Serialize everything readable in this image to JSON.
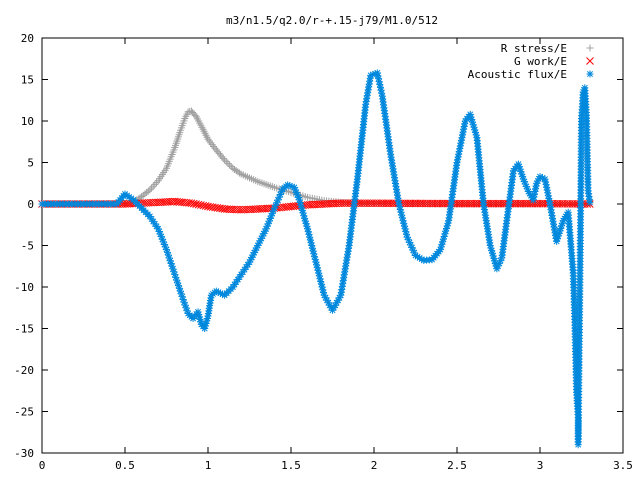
{
  "chart_data": {
    "type": "scatter",
    "title": "m3/n1.5/q2.0/r-+.15-j79/M1.0/512",
    "xlabel": "",
    "ylabel": "",
    "xlim": [
      0,
      3.5
    ],
    "ylim": [
      -30,
      20
    ],
    "x_ticks": [
      "0",
      "0.5",
      "1",
      "1.5",
      "2",
      "2.5",
      "3",
      "3.5"
    ],
    "y_ticks": [
      "20",
      "15",
      "10",
      "5",
      "0",
      "-5",
      "-10",
      "-15",
      "-20",
      "-25",
      "-30"
    ],
    "grid": false,
    "legend_position": "top-right",
    "series": [
      {
        "name": "R stress/E",
        "marker": "+",
        "color": "#a0a0a0",
        "points": [
          [
            0.0,
            0.0
          ],
          [
            0.3,
            0.0
          ],
          [
            0.5,
            0.05
          ],
          [
            0.55,
            0.2
          ],
          [
            0.6,
            0.9
          ],
          [
            0.65,
            1.7
          ],
          [
            0.7,
            2.8
          ],
          [
            0.75,
            4.3
          ],
          [
            0.8,
            6.8
          ],
          [
            0.83,
            8.6
          ],
          [
            0.86,
            10.3
          ],
          [
            0.88,
            11.1
          ],
          [
            0.9,
            11.2
          ],
          [
            0.93,
            10.5
          ],
          [
            0.97,
            9.0
          ],
          [
            1.0,
            7.8
          ],
          [
            1.05,
            6.5
          ],
          [
            1.1,
            5.3
          ],
          [
            1.15,
            4.3
          ],
          [
            1.2,
            3.6
          ],
          [
            1.3,
            2.7
          ],
          [
            1.4,
            2.0
          ],
          [
            1.5,
            1.4
          ],
          [
            1.6,
            0.8
          ],
          [
            1.7,
            0.4
          ],
          [
            1.8,
            0.2
          ],
          [
            1.9,
            0.1
          ],
          [
            2.1,
            0.05
          ],
          [
            2.5,
            0.0
          ],
          [
            3.0,
            0.0
          ],
          [
            3.3,
            0.0
          ]
        ]
      },
      {
        "name": "G work/E",
        "marker": "x",
        "color": "#ff0000",
        "points": [
          [
            0.0,
            0.0
          ],
          [
            0.5,
            0.0
          ],
          [
            0.6,
            0.1
          ],
          [
            0.7,
            0.2
          ],
          [
            0.8,
            0.3
          ],
          [
            0.9,
            0.1
          ],
          [
            1.0,
            -0.3
          ],
          [
            1.1,
            -0.6
          ],
          [
            1.2,
            -0.7
          ],
          [
            1.3,
            -0.6
          ],
          [
            1.4,
            -0.5
          ],
          [
            1.5,
            -0.3
          ],
          [
            1.6,
            -0.1
          ],
          [
            1.7,
            0.0
          ],
          [
            1.8,
            0.1
          ],
          [
            2.0,
            0.1
          ],
          [
            2.5,
            0.05
          ],
          [
            3.0,
            0.05
          ],
          [
            3.3,
            0.0
          ]
        ]
      },
      {
        "name": "Acoustic flux/E",
        "marker": "*",
        "color": "#0088dd",
        "points": [
          [
            0.0,
            0.0
          ],
          [
            0.45,
            0.0
          ],
          [
            0.5,
            1.2
          ],
          [
            0.55,
            0.5
          ],
          [
            0.6,
            -0.5
          ],
          [
            0.65,
            -1.5
          ],
          [
            0.7,
            -3.0
          ],
          [
            0.75,
            -5.5
          ],
          [
            0.8,
            -8.5
          ],
          [
            0.85,
            -11.5
          ],
          [
            0.88,
            -13.2
          ],
          [
            0.91,
            -13.8
          ],
          [
            0.94,
            -13.0
          ],
          [
            0.96,
            -14.5
          ],
          [
            0.98,
            -15.0
          ],
          [
            1.0,
            -13.5
          ],
          [
            1.02,
            -11.0
          ],
          [
            1.05,
            -10.5
          ],
          [
            1.1,
            -11.0
          ],
          [
            1.15,
            -10.0
          ],
          [
            1.2,
            -8.5
          ],
          [
            1.25,
            -7.0
          ],
          [
            1.3,
            -5.0
          ],
          [
            1.35,
            -3.0
          ],
          [
            1.4,
            -0.5
          ],
          [
            1.45,
            1.8
          ],
          [
            1.48,
            2.3
          ],
          [
            1.52,
            2.0
          ],
          [
            1.55,
            0.5
          ],
          [
            1.6,
            -3.0
          ],
          [
            1.65,
            -7.0
          ],
          [
            1.7,
            -11.0
          ],
          [
            1.75,
            -12.8
          ],
          [
            1.8,
            -11.0
          ],
          [
            1.85,
            -5.0
          ],
          [
            1.9,
            3.0
          ],
          [
            1.95,
            12.0
          ],
          [
            1.98,
            15.5
          ],
          [
            2.02,
            15.8
          ],
          [
            2.05,
            13.0
          ],
          [
            2.1,
            6.0
          ],
          [
            2.15,
            0.0
          ],
          [
            2.2,
            -4.0
          ],
          [
            2.25,
            -6.2
          ],
          [
            2.3,
            -6.8
          ],
          [
            2.35,
            -6.7
          ],
          [
            2.4,
            -5.5
          ],
          [
            2.45,
            -2.0
          ],
          [
            2.5,
            5.0
          ],
          [
            2.55,
            10.0
          ],
          [
            2.58,
            10.8
          ],
          [
            2.62,
            8.0
          ],
          [
            2.66,
            0.0
          ],
          [
            2.7,
            -5.0
          ],
          [
            2.74,
            -7.8
          ],
          [
            2.77,
            -6.5
          ],
          [
            2.8,
            -2.0
          ],
          [
            2.84,
            4.0
          ],
          [
            2.87,
            4.8
          ],
          [
            2.9,
            3.0
          ],
          [
            2.93,
            1.5
          ],
          [
            2.96,
            0.5
          ],
          [
            2.98,
            2.5
          ],
          [
            3.0,
            3.3
          ],
          [
            3.03,
            3.0
          ],
          [
            3.06,
            0.0
          ],
          [
            3.1,
            -4.5
          ],
          [
            3.14,
            -2.0
          ],
          [
            3.17,
            -1.0
          ],
          [
            3.2,
            -8.3
          ],
          [
            3.21,
            -14.6
          ],
          [
            3.22,
            -22.7
          ],
          [
            3.23,
            -25.7
          ],
          [
            3.23,
            -29.0
          ],
          [
            3.24,
            -10.5
          ],
          [
            3.25,
            10.3
          ],
          [
            3.26,
            13.5
          ],
          [
            3.27,
            14.0
          ],
          [
            3.28,
            10.7
          ],
          [
            3.29,
            1.6
          ],
          [
            3.3,
            0.2
          ]
        ]
      }
    ]
  }
}
